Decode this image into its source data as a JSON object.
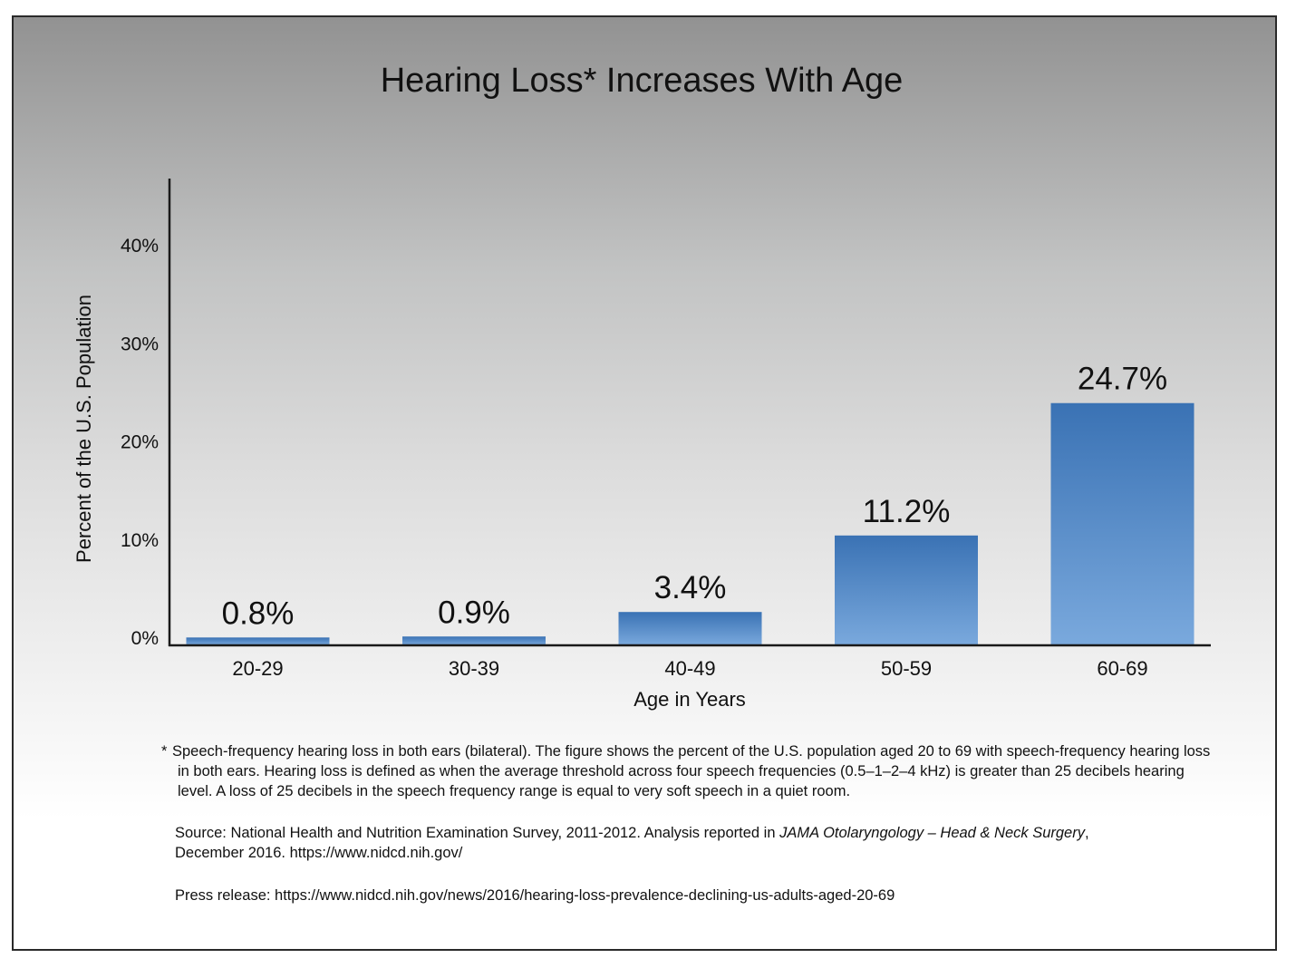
{
  "chart_data": {
    "type": "bar",
    "title": "Hearing Loss* Increases With Age",
    "xlabel": "Age in Years",
    "ylabel": "Percent of the U.S. Population",
    "categories": [
      "20-29",
      "30-39",
      "40-49",
      "50-59",
      "60-69"
    ],
    "values": [
      0.8,
      0.9,
      3.4,
      11.2,
      24.7
    ],
    "data_labels": [
      "0.8%",
      "0.9%",
      "3.4%",
      "11.2%",
      "24.7%"
    ],
    "y_ticks": [
      {
        "value": 0,
        "label": "0%"
      },
      {
        "value": 10,
        "label": "10%"
      },
      {
        "value": 20,
        "label": "20%"
      },
      {
        "value": 30,
        "label": "30%"
      },
      {
        "value": 40,
        "label": "40%"
      }
    ],
    "ylim": [
      0,
      47
    ],
    "grid": false,
    "bar_color_top": "#3a72b4",
    "bar_color_bottom": "#7aa9dd",
    "background_top": "#929292",
    "background_bottom": "#ffffff"
  },
  "notes": {
    "footnote_star": "*",
    "footnote": "Speech-frequency hearing loss in both ears (bilateral). The figure shows the percent of the U.S. population aged 20 to 69 with speech-frequency hearing loss in both ears. Hearing loss is defined as when the average threshold across four speech frequencies (0.5–1–2–4 kHz) is greater than 25 decibels hearing level. A loss of 25 decibels in the speech frequency range is equal to very soft speech in a quiet room.",
    "source_prefix": "Source: National Health and Nutrition Examination Survey, 2011-2012. Analysis reported in ",
    "source_journal": "JAMA Otolaryngology – Head & Neck Surgery",
    "source_suffix": ",",
    "source_line2": "December 2016. https://www.nidcd.nih.gov/",
    "press": "Press release: https://www.nidcd.nih.gov/news/2016/hearing-loss-prevalence-declining-us-adults-aged-20-69"
  }
}
